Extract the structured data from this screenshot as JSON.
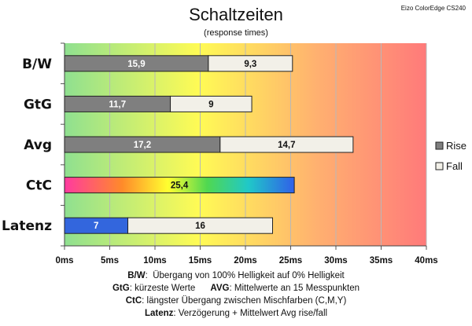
{
  "header": {
    "title": "Schaltzeiten",
    "subtitle": "(response times)",
    "brand": "Eizo ColorEdge CS240"
  },
  "legend": [
    {
      "name": "Rise",
      "color": "#7f7f7f"
    },
    {
      "name": "Fall",
      "color": "#f2f0e8"
    }
  ],
  "colors": {
    "rise": "#7f7f7f",
    "fall": "#f2f0e8",
    "latenz": "#3366dd",
    "background_gradient": [
      "#8fe090",
      "#fffb55",
      "#ffb070",
      "#ff7a7a"
    ]
  },
  "notes": [
    {
      "key": "B/W",
      "text": "Übergang von 100% Helligkeit auf 0% Helligkeit"
    },
    {
      "key": "GtG",
      "text": "kürzeste  Werte",
      "key2": "AVG",
      "text2": "Mittelwerte an 15 Messpunkten"
    },
    {
      "key": "CtC",
      "text": "längster Übergang  zwischen Mischfarben (C,M,Y)"
    },
    {
      "key": "Latenz",
      "text": "Verzögerung  + Mittelwert Avg rise/fall"
    }
  ],
  "chart_data": {
    "type": "bar",
    "orientation": "horizontal",
    "stacked": true,
    "categories": [
      "B/W",
      "GtG",
      "Avg",
      "CtC",
      "Latenz"
    ],
    "series": [
      {
        "name": "Rise",
        "values": [
          15.9,
          11.7,
          17.2,
          null,
          null
        ]
      },
      {
        "name": "Fall",
        "values": [
          9.3,
          9,
          14.7,
          null,
          16
        ]
      }
    ],
    "ctc": {
      "value": 25.4,
      "label": "25,4"
    },
    "latenz": {
      "value": 7,
      "label": "7"
    },
    "value_labels": {
      "B/W": [
        "15,9",
        "9,3"
      ],
      "GtG": [
        "11,7",
        "9"
      ],
      "Avg": [
        "17,2",
        "14,7"
      ],
      "Latenz": [
        "7",
        "16"
      ]
    },
    "xlim": [
      0,
      40
    ],
    "xticks": [
      0,
      5,
      10,
      15,
      20,
      25,
      30,
      35,
      40
    ],
    "xtick_labels": [
      "0ms",
      "5ms",
      "10ms",
      "15ms",
      "20ms",
      "25ms",
      "30ms",
      "35ms",
      "40ms"
    ],
    "grid": true,
    "legend_position": "right"
  }
}
